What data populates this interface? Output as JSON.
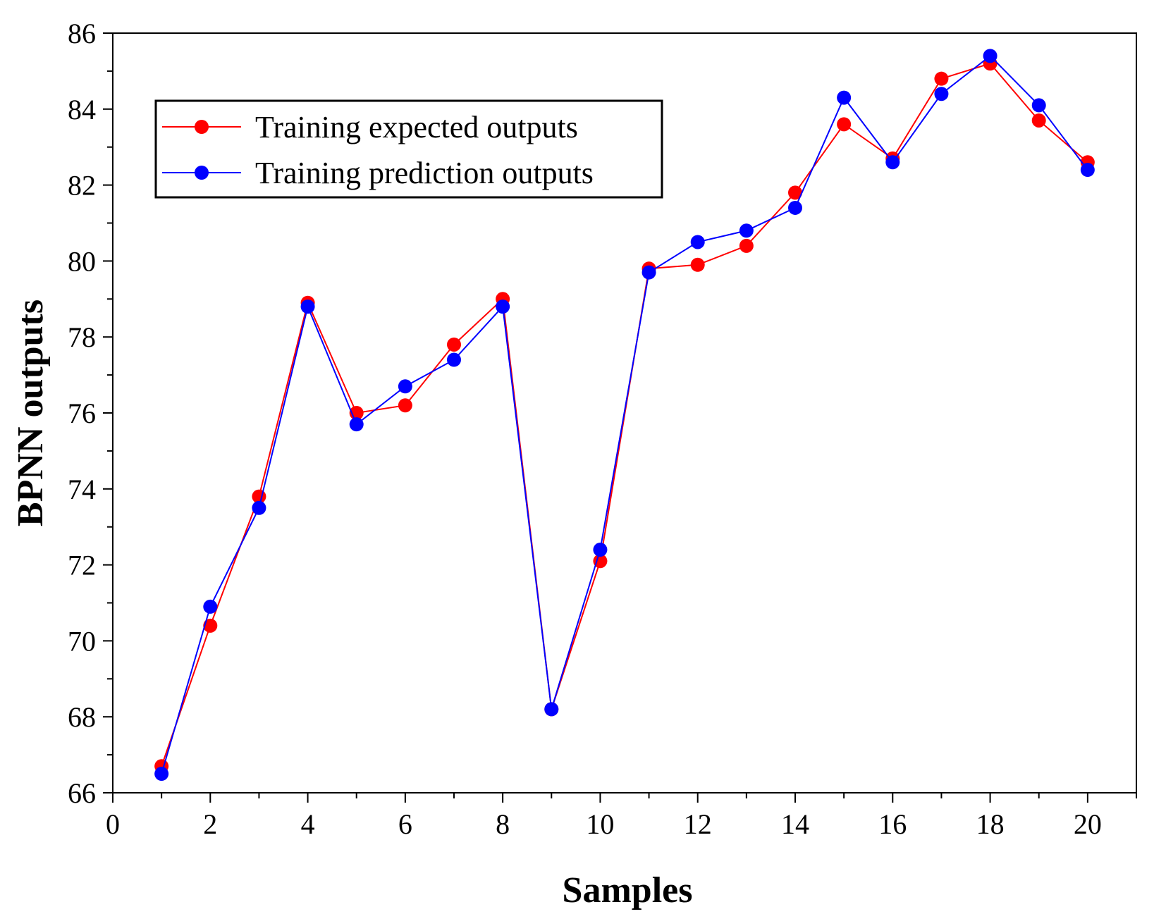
{
  "chart_data": {
    "type": "line",
    "title": "",
    "xlabel": "Samples",
    "ylabel": "BPNN outputs",
    "xlim": [
      0,
      21
    ],
    "ylim": [
      66,
      86
    ],
    "xticks": [
      0,
      2,
      4,
      6,
      8,
      10,
      12,
      14,
      16,
      18,
      20
    ],
    "yticks": [
      66,
      68,
      70,
      72,
      74,
      76,
      78,
      80,
      82,
      84,
      86
    ],
    "grid": false,
    "legend_position": "top-left",
    "x": [
      1,
      2,
      3,
      4,
      5,
      6,
      7,
      8,
      9,
      10,
      11,
      12,
      13,
      14,
      15,
      16,
      17,
      18,
      19,
      20
    ],
    "series": [
      {
        "name": "Training expected outputs",
        "color": "#ff0000",
        "values": [
          66.7,
          70.4,
          73.8,
          78.9,
          76.0,
          76.2,
          77.8,
          79.0,
          68.2,
          72.1,
          79.8,
          79.9,
          80.4,
          81.8,
          83.6,
          82.7,
          84.8,
          85.2,
          83.7,
          82.6
        ]
      },
      {
        "name": "Training prediction outputs",
        "color": "#0000ff",
        "values": [
          66.5,
          70.9,
          73.5,
          78.8,
          75.7,
          76.7,
          77.4,
          78.8,
          68.2,
          72.4,
          79.7,
          80.5,
          80.8,
          81.4,
          84.3,
          82.6,
          84.4,
          85.4,
          84.1,
          82.4
        ]
      }
    ]
  }
}
